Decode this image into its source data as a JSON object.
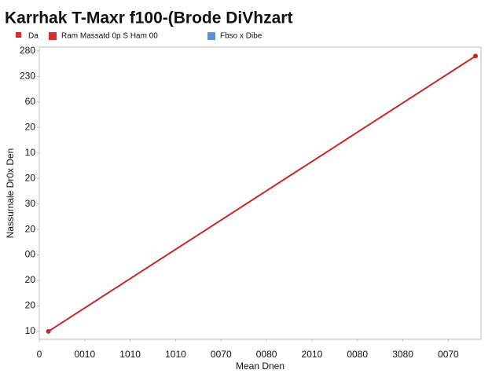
{
  "chart_data": {
    "type": "line",
    "title": "Karrhak T-Maxr f100-(Brode DiVhzart",
    "legend": [
      {
        "name": "Da",
        "color": "#d32f2f"
      },
      {
        "name": "Ram Massatd 0p S Ham 00",
        "color": "#d32f2f"
      },
      {
        "name": "Fbso x Dibe",
        "color": "#5b8fd6"
      }
    ],
    "x_label": "Mean Dnen",
    "y_label": "Nassurnale Dr0x Den",
    "x": [
      0.2,
      9.6
    ],
    "series": [
      {
        "name": "Ram Massatd 0p S Ham 00",
        "color": "#c62828",
        "values": [
          0,
          10.8
        ]
      }
    ],
    "xlim": [
      0,
      9.72
    ],
    "ylim": [
      -0.31,
      11.15
    ],
    "xticks": [
      {
        "value": 0,
        "label": "0"
      },
      {
        "value": 1,
        "label": "0010"
      },
      {
        "value": 2,
        "label": "1010"
      },
      {
        "value": 3,
        "label": "1010"
      },
      {
        "value": 4,
        "label": "0070"
      },
      {
        "value": 5,
        "label": "0080"
      },
      {
        "value": 6,
        "label": "2010"
      },
      {
        "value": 7,
        "label": "0080"
      },
      {
        "value": 8,
        "label": "3080"
      },
      {
        "value": 9,
        "label": "0070"
      }
    ],
    "yticks": [
      {
        "value": 0,
        "label": "10"
      },
      {
        "value": 1,
        "label": "20"
      },
      {
        "value": 2,
        "label": "20"
      },
      {
        "value": 3,
        "label": "00"
      },
      {
        "value": 4,
        "label": "20"
      },
      {
        "value": 5,
        "label": "30"
      },
      {
        "value": 6,
        "label": "20"
      },
      {
        "value": 7,
        "label": "10"
      },
      {
        "value": 8,
        "label": "20"
      },
      {
        "value": 9,
        "label": "60"
      },
      {
        "value": 10,
        "label": "230"
      },
      {
        "value": 11,
        "label": "280"
      }
    ]
  }
}
